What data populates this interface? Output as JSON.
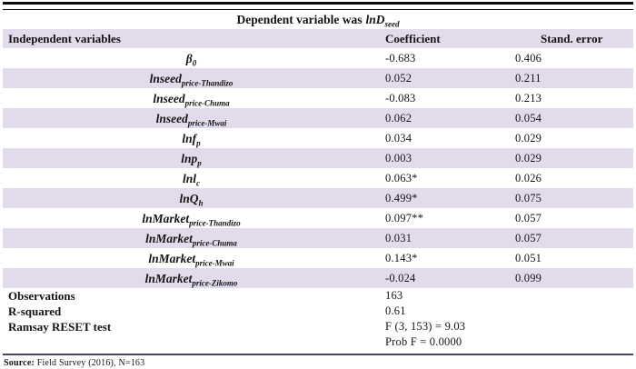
{
  "title": {
    "prefix": "Dependent variable was",
    "var": "lnD",
    "var_sub": "seed"
  },
  "table": {
    "headers": [
      "Independent variables",
      "Coefficient",
      "Stand. error"
    ],
    "rows": [
      {
        "name": "β",
        "sub": "0",
        "coef": "-0.683",
        "se": "0.406"
      },
      {
        "name": "lnseed",
        "sub": "price-Thandizo",
        "coef": "0.052",
        "se": "0.211"
      },
      {
        "name": "lnseed",
        "sub": "price-Chuma",
        "coef": "-0.083",
        "se": "0.213"
      },
      {
        "name": "lnseed",
        "sub": "price-Mwai",
        "coef": "0.062",
        "se": "0.054"
      },
      {
        "name": "lnf",
        "sub": "p",
        "coef": "0.034",
        "se": "0.029"
      },
      {
        "name": "lnp",
        "sub": "p",
        "coef": "0.003",
        "se": "0.029"
      },
      {
        "name": "lnl",
        "sub": "c",
        "coef": "0.063*",
        "se": "0.026"
      },
      {
        "name": "lnQ",
        "sub": "h",
        "coef": "0.499*",
        "se": "0.075"
      },
      {
        "name": "lnMarket",
        "sub": "price-Thandizo",
        "coef": "0.097**",
        "se": "0.057"
      },
      {
        "name": "lnMarket",
        "sub": "price-Chuma",
        "coef": "0.031",
        "se": "0.057"
      },
      {
        "name": "lnMarket",
        "sub": "price-Mwai",
        "coef": "0.143*",
        "se": "0.051"
      },
      {
        "name": "lnMarket",
        "sub": "price-Zikomo",
        "coef": "-0.024",
        "se": "0.099"
      }
    ],
    "summary": [
      {
        "label": "Observations",
        "value": "163"
      },
      {
        "label": "R-squared",
        "value": "0.61"
      },
      {
        "label": "Ramsay RESET test",
        "value": "F (3, 153) = 9.03"
      },
      {
        "label": "",
        "value": "Prob F =  0.0000"
      }
    ]
  },
  "footer": {
    "label": "Source:",
    "text": "Field Survey (2016), N=163"
  },
  "colors": {
    "row_stripe": "#e2dbeb",
    "top_rule": "#0a0a0a",
    "bottom_rule": "#4a4260",
    "text": "#141414"
  }
}
